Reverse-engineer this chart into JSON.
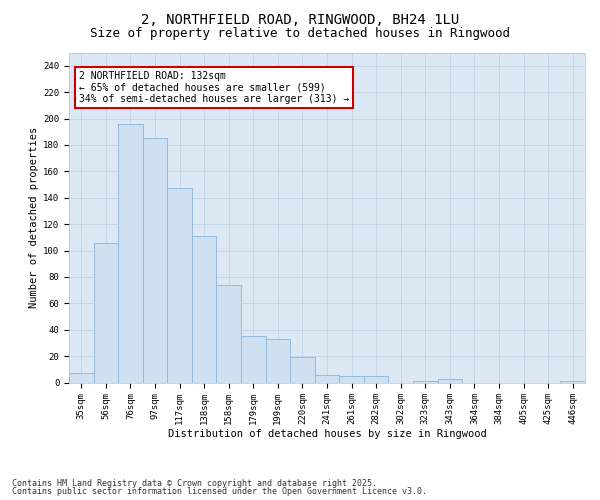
{
  "title_line1": "2, NORTHFIELD ROAD, RINGWOOD, BH24 1LU",
  "title_line2": "Size of property relative to detached houses in Ringwood",
  "xlabel": "Distribution of detached houses by size in Ringwood",
  "ylabel": "Number of detached properties",
  "categories": [
    "35sqm",
    "56sqm",
    "76sqm",
    "97sqm",
    "117sqm",
    "138sqm",
    "158sqm",
    "179sqm",
    "199sqm",
    "220sqm",
    "241sqm",
    "261sqm",
    "282sqm",
    "302sqm",
    "323sqm",
    "343sqm",
    "364sqm",
    "384sqm",
    "405sqm",
    "425sqm",
    "446sqm"
  ],
  "values": [
    7,
    106,
    196,
    185,
    147,
    111,
    74,
    35,
    33,
    19,
    6,
    5,
    5,
    0,
    1,
    3,
    0,
    0,
    0,
    0,
    1
  ],
  "bar_color": "#cfe0f0",
  "bar_edge_color": "#8ab4d8",
  "annotation_text": "2 NORTHFIELD ROAD: 132sqm\n← 65% of detached houses are smaller (599)\n34% of semi-detached houses are larger (313) →",
  "annotation_box_facecolor": "#ffffff",
  "annotation_box_edgecolor": "#cc0000",
  "ylim": [
    0,
    250
  ],
  "yticks": [
    0,
    20,
    40,
    60,
    80,
    100,
    120,
    140,
    160,
    180,
    200,
    220,
    240
  ],
  "grid_color": "#c0d4e8",
  "figure_bg_color": "#ffffff",
  "plot_bg_color": "#dce8f4",
  "footer_line1": "Contains HM Land Registry data © Crown copyright and database right 2025.",
  "footer_line2": "Contains public sector information licensed under the Open Government Licence v3.0.",
  "title_fontsize": 10,
  "subtitle_fontsize": 9,
  "axis_label_fontsize": 7.5,
  "tick_fontsize": 6.5,
  "annotation_fontsize": 7,
  "footer_fontsize": 6
}
